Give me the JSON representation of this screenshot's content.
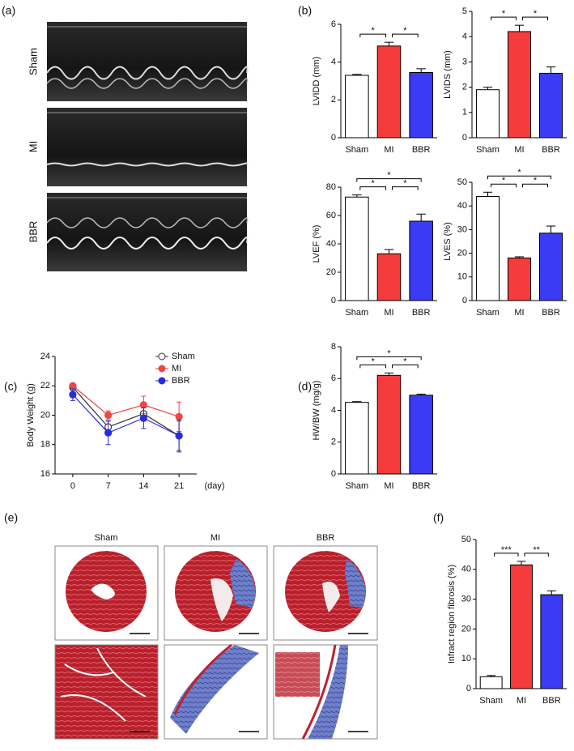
{
  "panels": [
    "(a)",
    "(b)",
    "(c)",
    "(d)",
    "(e)",
    "(f)"
  ],
  "echo_labels": [
    "Sham",
    "MI",
    "BBR"
  ],
  "histology_titles": [
    "Sham",
    "MI",
    "BBR"
  ],
  "chart_data": [
    {
      "type": "bar",
      "ylabel": "LVIDD (mm)",
      "categories": [
        "Sham",
        "MI",
        "BBR"
      ],
      "values": [
        3.3,
        4.85,
        3.45
      ],
      "errors": [
        0.05,
        0.2,
        0.2
      ],
      "colors": [
        "#ffffff",
        "#f53b3b",
        "#3b3bf5"
      ],
      "ylim": [
        0,
        6
      ],
      "yticks": [
        0,
        2,
        4,
        6
      ],
      "significance": [
        {
          "pair": [
            "Sham",
            "MI"
          ],
          "label": "*"
        },
        {
          "pair": [
            "MI",
            "BBR"
          ],
          "label": "*"
        }
      ]
    },
    {
      "type": "bar",
      "ylabel": "LVIDS (mm)",
      "categories": [
        "Sham",
        "MI",
        "BBR"
      ],
      "values": [
        1.9,
        4.2,
        2.55
      ],
      "errors": [
        0.1,
        0.25,
        0.25
      ],
      "colors": [
        "#ffffff",
        "#f53b3b",
        "#3b3bf5"
      ],
      "ylim": [
        0,
        5
      ],
      "yticks": [
        0,
        1,
        2,
        3,
        4,
        5
      ],
      "significance": [
        {
          "pair": [
            "Sham",
            "MI"
          ],
          "label": "*"
        },
        {
          "pair": [
            "MI",
            "BBR"
          ],
          "label": "*"
        }
      ]
    },
    {
      "type": "bar",
      "ylabel": "LVEF (%)",
      "categories": [
        "Sham",
        "MI",
        "BBR"
      ],
      "values": [
        73,
        33,
        56
      ],
      "errors": [
        1.5,
        3,
        5
      ],
      "colors": [
        "#ffffff",
        "#f53b3b",
        "#3b3bf5"
      ],
      "ylim": [
        0,
        80
      ],
      "yticks": [
        0,
        20,
        40,
        60,
        80
      ],
      "significance": [
        {
          "pair": [
            "Sham",
            "MI"
          ],
          "label": "*"
        },
        {
          "pair": [
            "MI",
            "BBR"
          ],
          "label": "*"
        },
        {
          "pair": [
            "Sham",
            "BBR"
          ],
          "label": "*"
        }
      ]
    },
    {
      "type": "bar",
      "ylabel": "LVES (%)",
      "categories": [
        "Sham",
        "MI",
        "BBR"
      ],
      "values": [
        44,
        18,
        28.5
      ],
      "errors": [
        1.8,
        0.5,
        3
      ],
      "colors": [
        "#ffffff",
        "#f53b3b",
        "#3b3bf5"
      ],
      "ylim": [
        0,
        50
      ],
      "yticks": [
        0,
        10,
        20,
        30,
        40,
        50
      ],
      "significance": [
        {
          "pair": [
            "Sham",
            "MI"
          ],
          "label": "*"
        },
        {
          "pair": [
            "MI",
            "BBR"
          ],
          "label": "*"
        },
        {
          "pair": [
            "Sham",
            "BBR"
          ],
          "label": "*"
        }
      ]
    },
    {
      "type": "line",
      "ylabel": "Body Weight (g)",
      "xlabel": "(day)",
      "x": [
        0,
        7,
        14,
        21
      ],
      "xlim": [
        -3.5,
        24.5
      ],
      "xticks": [
        0,
        7,
        14,
        21
      ],
      "ylim": [
        16,
        24
      ],
      "yticks": [
        16,
        18,
        20,
        22,
        24
      ],
      "series": [
        {
          "name": "Sham",
          "color": "#333333",
          "marker": "open",
          "values": [
            21.9,
            19.2,
            20.1,
            18.6
          ],
          "errors": [
            0.2,
            0.4,
            0.5,
            1.0
          ]
        },
        {
          "name": "MI",
          "color": "#f04545",
          "marker": "filled",
          "values": [
            22.0,
            20.0,
            20.7,
            19.9
          ],
          "errors": [
            0.1,
            0.3,
            0.6,
            1.0
          ]
        },
        {
          "name": "BBR",
          "color": "#2a2ae0",
          "marker": "filled",
          "values": [
            21.4,
            18.8,
            19.8,
            18.6
          ],
          "errors": [
            0.4,
            0.8,
            0.7,
            1.1
          ]
        }
      ]
    },
    {
      "type": "bar",
      "ylabel": "HW/BW (mg/g)",
      "categories": [
        "Sham",
        "MI",
        "BBR"
      ],
      "values": [
        4.5,
        6.2,
        4.95
      ],
      "errors": [
        0.05,
        0.15,
        0.07
      ],
      "colors": [
        "#ffffff",
        "#f53b3b",
        "#3b3bf5"
      ],
      "ylim": [
        0,
        8
      ],
      "yticks": [
        0,
        2,
        4,
        6,
        8
      ],
      "significance": [
        {
          "pair": [
            "Sham",
            "MI"
          ],
          "label": "*"
        },
        {
          "pair": [
            "MI",
            "BBR"
          ],
          "label": "*"
        },
        {
          "pair": [
            "Sham",
            "BBR"
          ],
          "label": "*"
        }
      ]
    },
    {
      "type": "bar",
      "ylabel": "Infract region fibrosis (%)",
      "categories": [
        "Sham",
        "MI",
        "BBR"
      ],
      "values": [
        4,
        41.5,
        31.5
      ],
      "errors": [
        0.4,
        1.2,
        1.3
      ],
      "colors": [
        "#ffffff",
        "#f53b3b",
        "#3b3bf5"
      ],
      "ylim": [
        0,
        50
      ],
      "yticks": [
        0,
        10,
        20,
        30,
        40,
        50
      ],
      "significance": [
        {
          "pair": [
            "Sham",
            "MI"
          ],
          "label": "***"
        },
        {
          "pair": [
            "MI",
            "BBR"
          ],
          "label": "**"
        }
      ]
    }
  ]
}
